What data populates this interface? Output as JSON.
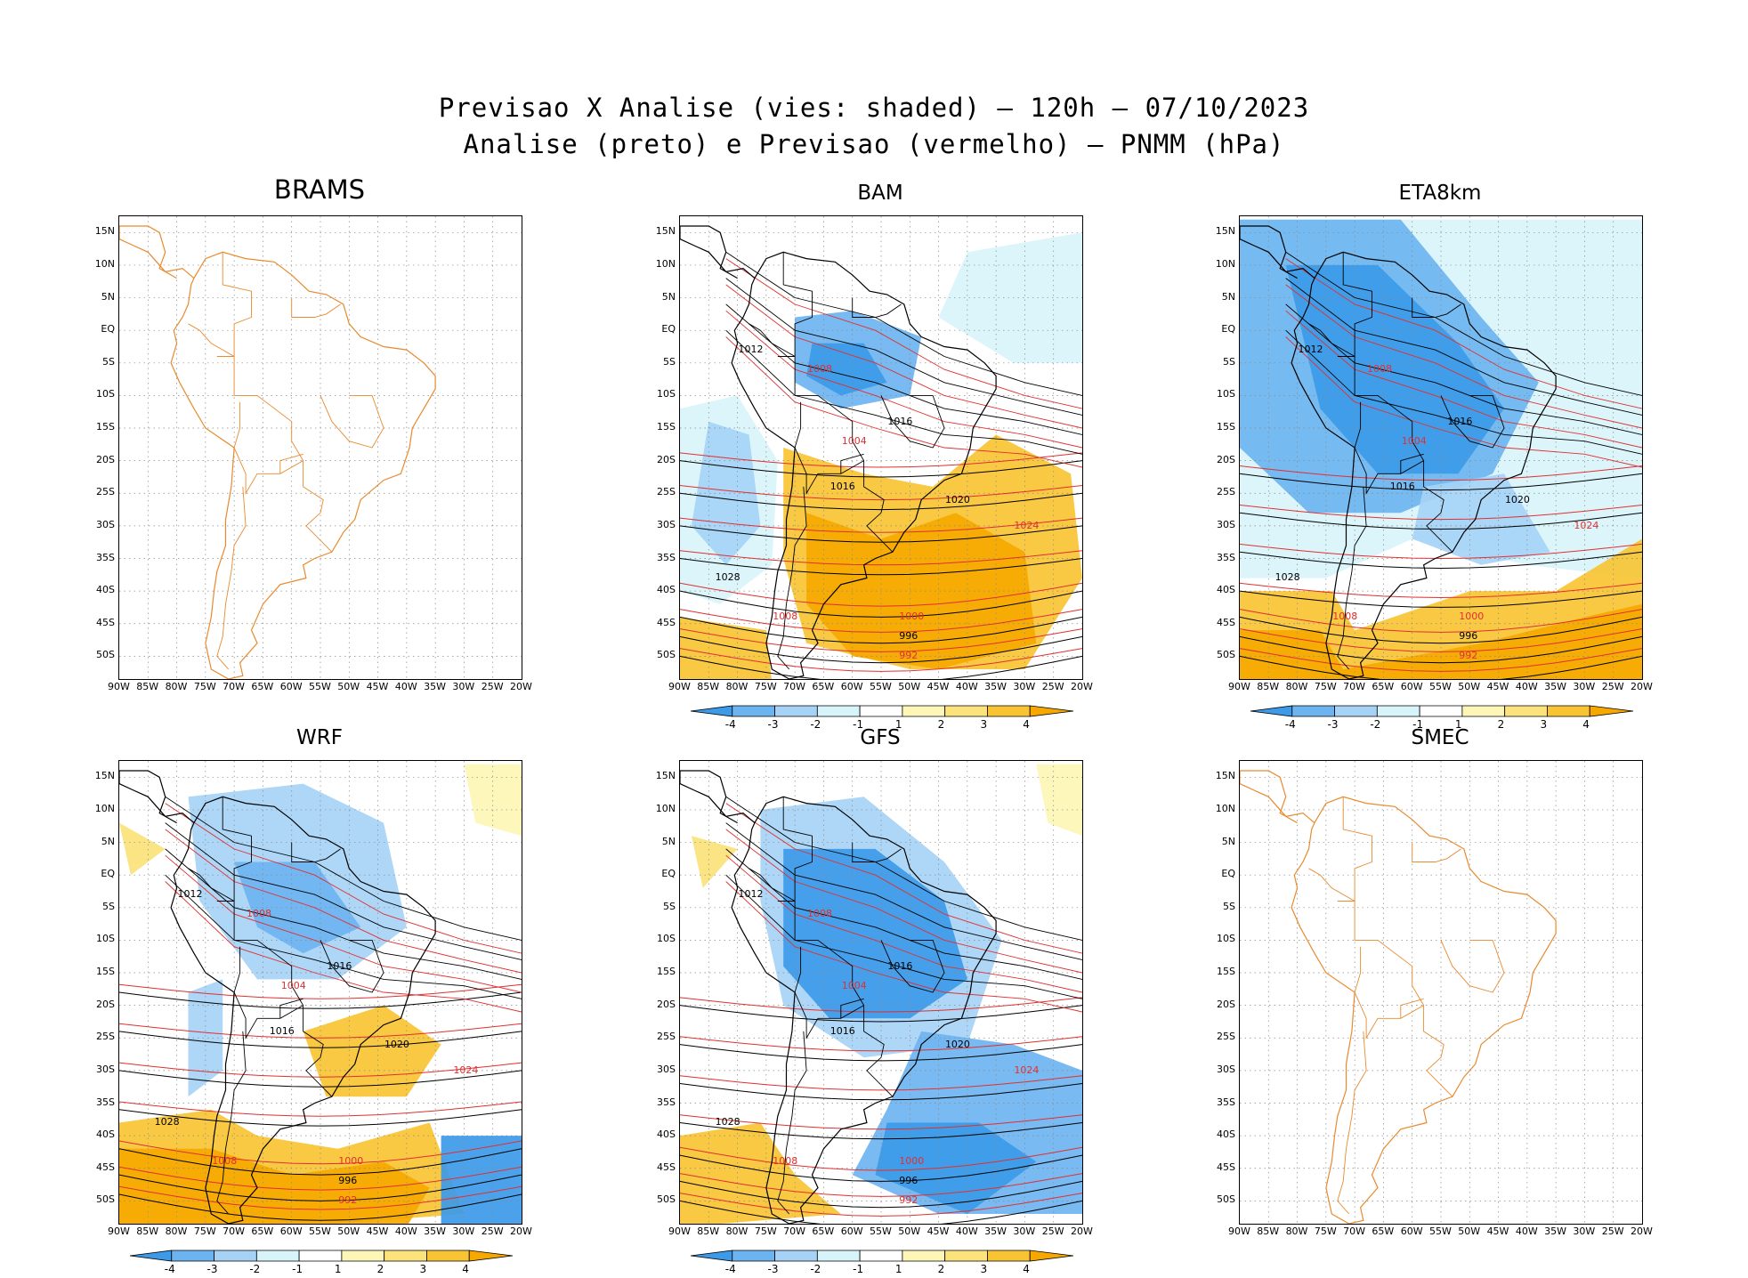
{
  "header": {
    "line1": "Previsao X Analise (vies: shaded) – 120h – 07/10/2023",
    "line2": "Analise (preto) e Previsao (vermelho) – PNMM (hPa)"
  },
  "lat_labels": [
    "15N",
    "10N",
    "5N",
    "EQ",
    "5S",
    "10S",
    "15S",
    "20S",
    "25S",
    "30S",
    "35S",
    "40S",
    "45S",
    "50S"
  ],
  "lon_labels": [
    "90W",
    "85W",
    "80W",
    "75W",
    "70W",
    "65W",
    "60W",
    "55W",
    "50W",
    "45W",
    "40W",
    "35W",
    "30W",
    "25W",
    "20W"
  ],
  "colorbar": {
    "ticks": [
      "-4",
      "-3",
      "-2",
      "-1",
      "1",
      "2",
      "3",
      "4"
    ],
    "colors": [
      "#3c9ae8",
      "#6cb4f0",
      "#a6d2f6",
      "#d8f4fb",
      "#ffffff",
      "#fdf6b6",
      "#fbe27a",
      "#f8c434",
      "#f6a800"
    ]
  },
  "colors": {
    "coast": "#e88a2e",
    "analysis": "#000000",
    "forecast": "#e03030"
  },
  "panels": [
    {
      "id": "brams",
      "title": "BRAMS",
      "shaded": false,
      "isobar_labels": []
    },
    {
      "id": "bam",
      "title": "BAM",
      "shaded": true,
      "isobar_labels": [
        "1012",
        "1008",
        "1016",
        "1004",
        "1020",
        "1024",
        "1028",
        "1000",
        "996",
        "992"
      ]
    },
    {
      "id": "eta",
      "title": "ETA8km",
      "shaded": true,
      "isobar_labels": [
        "1012",
        "1008",
        "1016",
        "1004",
        "1020",
        "1024",
        "1028",
        "1000",
        "996",
        "992"
      ]
    },
    {
      "id": "wrf",
      "title": "WRF",
      "shaded": true,
      "isobar_labels": [
        "1012",
        "1008",
        "1016",
        "1004",
        "1020",
        "1024",
        "1028",
        "1000",
        "996",
        "992"
      ]
    },
    {
      "id": "gfs",
      "title": "GFS",
      "shaded": true,
      "isobar_labels": [
        "1012",
        "1008",
        "1016",
        "1004",
        "1020",
        "1024",
        "1028",
        "1000",
        "996",
        "992"
      ]
    },
    {
      "id": "smec",
      "title": "SMEC",
      "shaded": false,
      "isobar_labels": []
    }
  ]
}
